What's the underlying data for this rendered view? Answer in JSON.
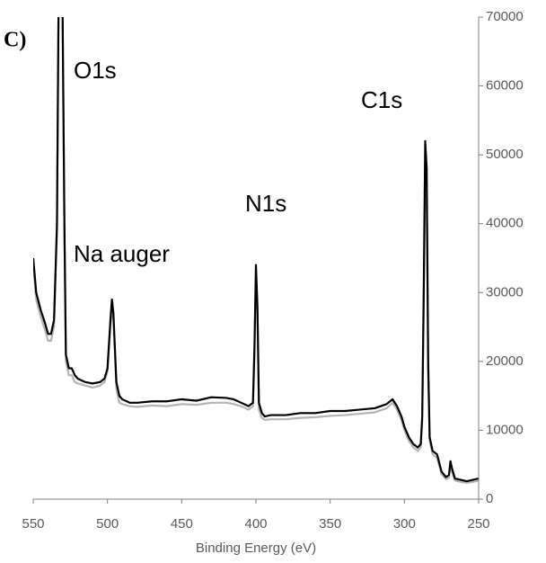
{
  "chart_data": {
    "type": "line",
    "panel_label": "C)",
    "annotations": [
      "O1s",
      "Na auger",
      "N1s",
      "C1s"
    ],
    "x_label": "Binding Energy (eV)",
    "x": [
      550,
      548,
      545,
      542,
      540,
      538,
      536,
      534,
      533,
      531,
      529,
      528,
      526,
      524,
      522,
      520,
      515,
      510,
      505,
      502,
      500,
      498,
      497,
      496,
      494,
      492,
      490,
      485,
      480,
      470,
      460,
      450,
      440,
      430,
      420,
      415,
      410,
      405,
      402,
      401,
      400,
      399,
      398,
      396,
      394,
      390,
      380,
      370,
      360,
      350,
      340,
      330,
      320,
      312,
      308,
      305,
      302,
      300,
      297,
      294,
      291,
      289,
      288,
      287,
      286,
      285,
      284,
      283,
      281,
      278,
      275,
      272,
      270,
      269,
      268,
      266,
      262,
      258,
      254,
      250
    ],
    "series": [
      {
        "color": "#000000",
        "values": [
          35000,
          30000,
          27500,
          25500,
          24000,
          24000,
          26000,
          40000,
          70000,
          90000,
          40000,
          21000,
          19000,
          19000,
          18000,
          17500,
          17000,
          16800,
          17000,
          17500,
          19000,
          26000,
          29000,
          27000,
          17000,
          15000,
          14500,
          14000,
          14000,
          14200,
          14200,
          14500,
          14300,
          14800,
          14700,
          14500,
          14000,
          13500,
          14000,
          22000,
          34000,
          28000,
          14000,
          12500,
          12000,
          12200,
          12200,
          12500,
          12500,
          12800,
          12800,
          13000,
          13200,
          13800,
          14500,
          13500,
          12000,
          10500,
          9000,
          8000,
          7500,
          8000,
          12000,
          30000,
          52000,
          48000,
          20000,
          9000,
          7000,
          6500,
          4000,
          3200,
          3500,
          5500,
          4500,
          3000,
          2800,
          2600,
          2800,
          3000
        ]
      },
      {
        "color": "#b4b4b4",
        "values": [
          34000,
          29000,
          26500,
          24500,
          23000,
          23000,
          25000,
          39000,
          70000,
          90000,
          39000,
          20000,
          18000,
          18000,
          17000,
          16800,
          16500,
          16200,
          16500,
          17000,
          18500,
          25000,
          28000,
          26000,
          16000,
          14000,
          13800,
          13500,
          13400,
          13600,
          13500,
          13800,
          13700,
          14000,
          14000,
          13800,
          13500,
          13000,
          13500,
          21000,
          33000,
          27000,
          13000,
          11800,
          11500,
          11600,
          11600,
          11800,
          11900,
          12100,
          12200,
          12400,
          12600,
          13200,
          14000,
          13000,
          11500,
          10000,
          8500,
          7500,
          7000,
          7500,
          11000,
          28000,
          47500,
          44000,
          18000,
          8500,
          6500,
          6000,
          3600,
          2900,
          3100,
          5000,
          4000,
          2700,
          2500,
          2400,
          2500,
          2700
        ]
      }
    ],
    "xlim": [
      550,
      250
    ],
    "xticks": [
      550,
      500,
      450,
      400,
      350,
      300,
      250
    ],
    "ylim": [
      0,
      70000
    ],
    "yticks": [
      0,
      10000,
      20000,
      30000,
      40000,
      50000,
      60000,
      70000
    ],
    "y_axis_side": "right"
  }
}
